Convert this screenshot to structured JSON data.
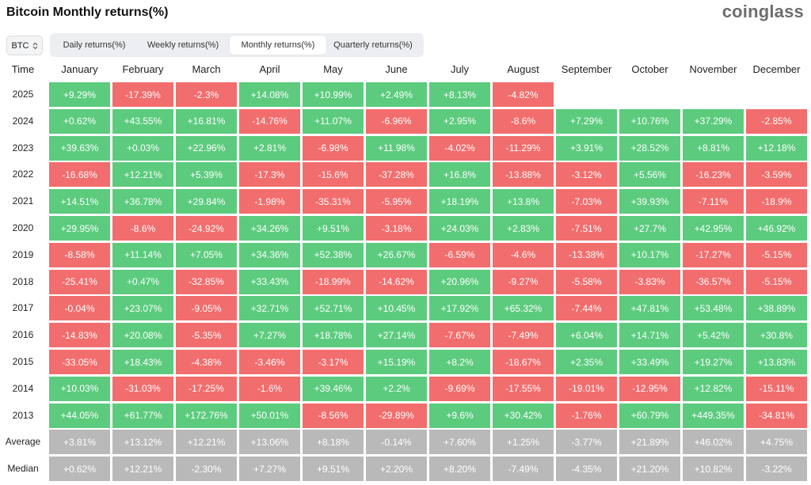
{
  "header": {
    "title": "Bitcoin Monthly returns(%)",
    "brand": "coinglass"
  },
  "symbol_select": {
    "value": "BTC"
  },
  "tabs": [
    {
      "label": "Daily returns(%)",
      "active": false
    },
    {
      "label": "Weekly returns(%)",
      "active": false
    },
    {
      "label": "Monthly returns(%)",
      "active": true
    },
    {
      "label": "Quarterly returns(%)",
      "active": false
    }
  ],
  "colors": {
    "positive": "#5ccb7e",
    "negative": "#f26d6d",
    "summary": "#b9b9b9"
  },
  "table": {
    "time_label": "Time",
    "months": [
      "January",
      "February",
      "March",
      "April",
      "May",
      "June",
      "July",
      "August",
      "September",
      "October",
      "November",
      "December"
    ],
    "rows": [
      {
        "year": "2025",
        "values": [
          "+9.29%",
          "-17.39%",
          "-2.3%",
          "+14.08%",
          "+10.99%",
          "+2.49%",
          "+8.13%",
          "-4.82%",
          "",
          "",
          "",
          ""
        ]
      },
      {
        "year": "2024",
        "values": [
          "+0.62%",
          "+43.55%",
          "+16.81%",
          "-14.76%",
          "+11.07%",
          "-6.96%",
          "+2.95%",
          "-8.6%",
          "+7.29%",
          "+10.76%",
          "+37.29%",
          "-2.85%"
        ]
      },
      {
        "year": "2023",
        "values": [
          "+39.63%",
          "+0.03%",
          "+22.96%",
          "+2.81%",
          "-6.98%",
          "+11.98%",
          "-4.02%",
          "-11.29%",
          "+3.91%",
          "+28.52%",
          "+8.81%",
          "+12.18%"
        ]
      },
      {
        "year": "2022",
        "values": [
          "-16.68%",
          "+12.21%",
          "+5.39%",
          "-17.3%",
          "-15.6%",
          "-37.28%",
          "+16.8%",
          "-13.88%",
          "-3.12%",
          "+5.56%",
          "-16.23%",
          "-3.59%"
        ]
      },
      {
        "year": "2021",
        "values": [
          "+14.51%",
          "+36.78%",
          "+29.84%",
          "-1.98%",
          "-35.31%",
          "-5.95%",
          "+18.19%",
          "+13.8%",
          "-7.03%",
          "+39.93%",
          "-7.11%",
          "-18.9%"
        ]
      },
      {
        "year": "2020",
        "values": [
          "+29.95%",
          "-8.6%",
          "-24.92%",
          "+34.26%",
          "+9.51%",
          "-3.18%",
          "+24.03%",
          "+2.83%",
          "-7.51%",
          "+27.7%",
          "+42.95%",
          "+46.92%"
        ]
      },
      {
        "year": "2019",
        "values": [
          "-8.58%",
          "+11.14%",
          "+7.05%",
          "+34.36%",
          "+52.38%",
          "+26.67%",
          "-6.59%",
          "-4.6%",
          "-13.38%",
          "+10.17%",
          "-17.27%",
          "-5.15%"
        ]
      },
      {
        "year": "2018",
        "values": [
          "-25.41%",
          "+0.47%",
          "-32.85%",
          "+33.43%",
          "-18.99%",
          "-14.62%",
          "+20.96%",
          "-9.27%",
          "-5.58%",
          "-3.83%",
          "-36.57%",
          "-5.15%"
        ]
      },
      {
        "year": "2017",
        "values": [
          "-0.04%",
          "+23.07%",
          "-9.05%",
          "+32.71%",
          "+52.71%",
          "+10.45%",
          "+17.92%",
          "+65.32%",
          "-7.44%",
          "+47.81%",
          "+53.48%",
          "+38.89%"
        ]
      },
      {
        "year": "2016",
        "values": [
          "-14.83%",
          "+20.08%",
          "-5.35%",
          "+7.27%",
          "+18.78%",
          "+27.14%",
          "-7.67%",
          "-7.49%",
          "+6.04%",
          "+14.71%",
          "+5.42%",
          "+30.8%"
        ]
      },
      {
        "year": "2015",
        "values": [
          "-33.05%",
          "+18.43%",
          "-4.38%",
          "-3.46%",
          "-3.17%",
          "+15.19%",
          "+8.2%",
          "-18.67%",
          "+2.35%",
          "+33.49%",
          "+19.27%",
          "+13.83%"
        ]
      },
      {
        "year": "2014",
        "values": [
          "+10.03%",
          "-31.03%",
          "-17.25%",
          "-1.6%",
          "+39.46%",
          "+2.2%",
          "-9.69%",
          "-17.55%",
          "-19.01%",
          "-12.95%",
          "+12.82%",
          "-15.11%"
        ]
      },
      {
        "year": "2013",
        "values": [
          "+44.05%",
          "+61.77%",
          "+172.76%",
          "+50.01%",
          "-8.56%",
          "-29.89%",
          "+9.6%",
          "+30.42%",
          "-1.76%",
          "+60.79%",
          "+449.35%",
          "-34.81%"
        ]
      }
    ],
    "summary": [
      {
        "label": "Average",
        "values": [
          "+3.81%",
          "+13.12%",
          "+12.21%",
          "+13.06%",
          "+8.18%",
          "-0.14%",
          "+7.60%",
          "+1.25%",
          "-3.77%",
          "+21.89%",
          "+46.02%",
          "+4.75%"
        ]
      },
      {
        "label": "Median",
        "values": [
          "+0.62%",
          "+12.21%",
          "-2.30%",
          "+7.27%",
          "+9.51%",
          "+2.20%",
          "+8.20%",
          "-7.49%",
          "-4.35%",
          "+21.20%",
          "+10.82%",
          "-3.22%"
        ]
      }
    ]
  }
}
